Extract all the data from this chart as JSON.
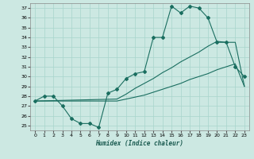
{
  "bg_color": "#cce8e2",
  "grid_color": "#a8d5cc",
  "line_color": "#1a6e60",
  "xlim": [
    -0.5,
    23.5
  ],
  "ylim": [
    24.5,
    37.5
  ],
  "xticks": [
    0,
    1,
    2,
    3,
    4,
    5,
    6,
    7,
    8,
    9,
    10,
    11,
    12,
    13,
    14,
    15,
    16,
    17,
    18,
    19,
    20,
    21,
    22,
    23
  ],
  "yticks": [
    25,
    26,
    27,
    28,
    29,
    30,
    31,
    32,
    33,
    34,
    35,
    36,
    37
  ],
  "xlabel": "Humidex (Indice chaleur)",
  "line1_x": [
    0,
    1,
    2,
    3,
    4,
    5,
    6,
    7,
    8,
    9,
    10,
    11,
    12,
    13,
    14,
    15,
    16,
    17,
    18,
    19,
    20,
    21,
    22,
    23
  ],
  "line1_y": [
    27.5,
    28.0,
    28.0,
    27.0,
    25.7,
    25.2,
    25.2,
    24.8,
    28.3,
    28.7,
    29.8,
    30.3,
    30.5,
    34.0,
    34.0,
    37.2,
    36.5,
    37.2,
    37.0,
    36.0,
    33.5,
    33.5,
    31.0,
    30.0
  ],
  "line2_x": [
    0,
    9,
    10,
    11,
    12,
    13,
    14,
    15,
    16,
    17,
    18,
    19,
    20,
    21,
    22,
    23
  ],
  "line2_y": [
    27.5,
    27.7,
    28.2,
    28.8,
    29.3,
    29.8,
    30.4,
    30.9,
    31.5,
    32.0,
    32.5,
    33.1,
    33.6,
    33.5,
    33.5,
    29.0
  ],
  "line3_x": [
    0,
    9,
    10,
    11,
    12,
    13,
    14,
    15,
    16,
    17,
    18,
    19,
    20,
    21,
    22,
    23
  ],
  "line3_y": [
    27.5,
    27.5,
    27.7,
    27.9,
    28.1,
    28.4,
    28.7,
    29.0,
    29.3,
    29.7,
    30.0,
    30.3,
    30.7,
    31.0,
    31.3,
    29.0
  ]
}
